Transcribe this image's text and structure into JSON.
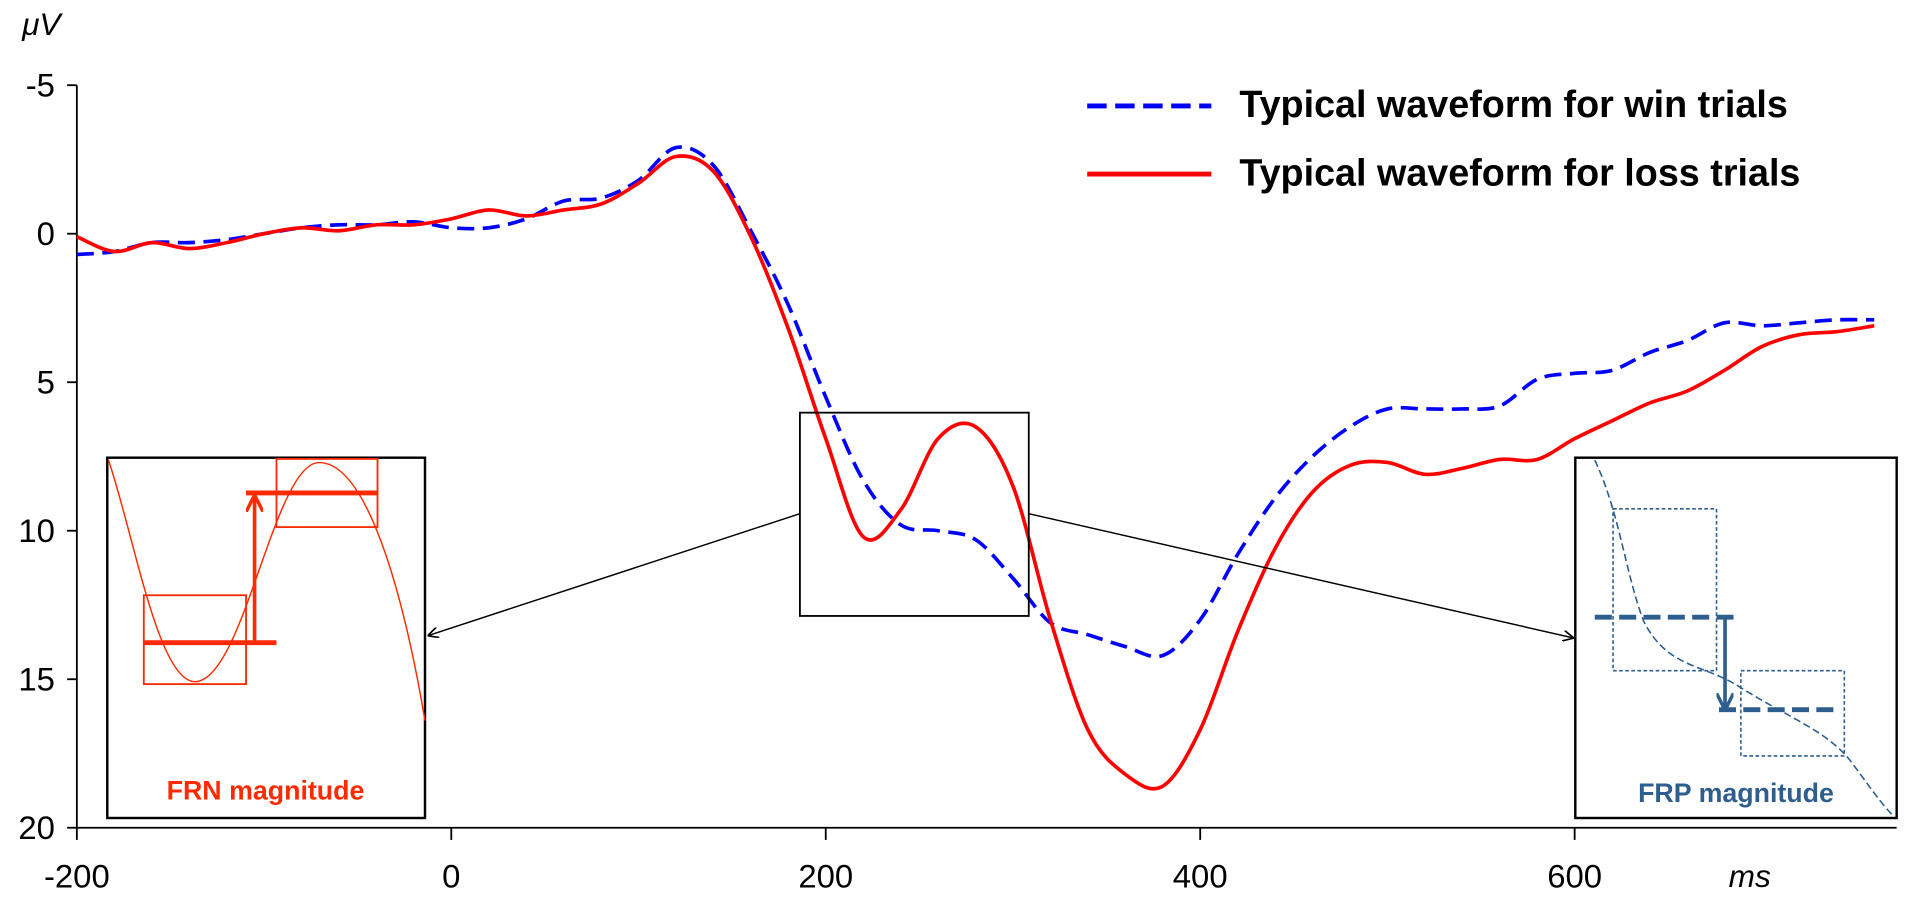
{
  "chart_data": {
    "type": "line",
    "ylabel": "μV",
    "xlabel": "ms",
    "x": [
      -200,
      -180,
      -160,
      -140,
      -120,
      -100,
      -80,
      -60,
      -40,
      -20,
      0,
      20,
      40,
      60,
      80,
      100,
      120,
      140,
      160,
      180,
      200,
      220,
      240,
      260,
      280,
      300,
      320,
      340,
      360,
      380,
      400,
      420,
      440,
      460,
      480,
      500,
      520,
      540,
      560,
      580,
      600,
      620,
      640,
      660,
      680,
      700,
      720,
      740,
      760
    ],
    "series": [
      {
        "name": "Typical waveform for win trials",
        "color": "#0000ff",
        "linestyle": "dashed",
        "values": [
          0.7,
          0.6,
          0.3,
          0.3,
          0.2,
          0,
          -0.2,
          -0.3,
          -0.3,
          -0.4,
          -0.2,
          -0.2,
          -0.5,
          -1.1,
          -1.2,
          -1.8,
          -2.9,
          -2.3,
          -0.1,
          2.4,
          5.5,
          8.3,
          9.8,
          10,
          10.3,
          11.6,
          13.1,
          13.5,
          13.9,
          14.2,
          13,
          10.8,
          8.9,
          7.5,
          6.5,
          5.9,
          5.9,
          5.9,
          5.8,
          4.9,
          4.7,
          4.6,
          4,
          3.6,
          3,
          3.1,
          3,
          2.9,
          2.9
        ]
      },
      {
        "name": "Typical waveform for loss trials",
        "color": "#ff0000",
        "linestyle": "solid",
        "values": [
          0.1,
          0.6,
          0.3,
          0.5,
          0.3,
          0,
          -0.2,
          -0.1,
          -0.3,
          -0.3,
          -0.5,
          -0.8,
          -0.6,
          -0.8,
          -1,
          -1.7,
          -2.6,
          -2.1,
          0.1,
          3.2,
          6.9,
          10.2,
          9.3,
          6.9,
          6.5,
          8.5,
          13,
          16.7,
          18.2,
          18.6,
          16.7,
          13.4,
          10.6,
          8.7,
          7.8,
          7.7,
          8.1,
          7.9,
          7.6,
          7.6,
          6.9,
          6.3,
          5.7,
          5.3,
          4.6,
          3.8,
          3.4,
          3.3,
          3.1
        ]
      }
    ],
    "xlim": [
      -200,
      772
    ],
    "xticks": [
      -200,
      0,
      200,
      400,
      600
    ],
    "ylim": [
      -5,
      20
    ],
    "yticks": [
      -5,
      0,
      5,
      10,
      15,
      20
    ],
    "y_reversed": true,
    "grid": false,
    "legend": "upper right",
    "annotations": [
      "FRN magnitude",
      "FRP magnitude"
    ]
  }
}
